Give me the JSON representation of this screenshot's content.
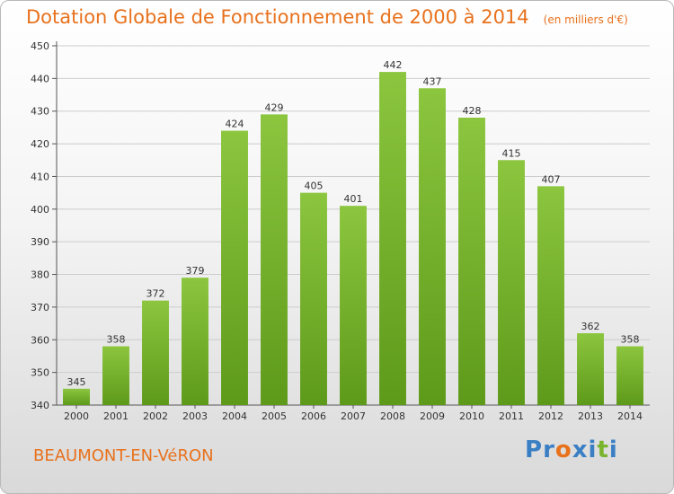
{
  "title": {
    "main": "Dotation Globale de Fonctionnement de 2000 à 2014",
    "unit": "(en milliers d'€)"
  },
  "commune": "BEAUMONT-EN-VéRON",
  "logo": {
    "text": "Proxiti",
    "letters": [
      "P",
      "r",
      "o",
      "x",
      "i",
      "t",
      "i"
    ],
    "colors": [
      "#3a7fc4",
      "#3a7fc4",
      "#e8711c",
      "#3a7fc4",
      "#3a7fc4",
      "#7ab32e",
      "#3a7fc4"
    ]
  },
  "colors": {
    "bar": "#8cc63f",
    "bar_dark": "#5e9a1a",
    "title": "#e8711c",
    "grid": "#cccccc"
  },
  "chart_data": {
    "type": "bar",
    "title": "Dotation Globale de Fonctionnement de 2000 à 2014",
    "subtitle": "(en milliers d'€)",
    "categories": [
      "2000",
      "2001",
      "2002",
      "2003",
      "2004",
      "2005",
      "2006",
      "2007",
      "2008",
      "2009",
      "2010",
      "2011",
      "2012",
      "2013",
      "2014"
    ],
    "values": [
      345,
      358,
      372,
      379,
      424,
      429,
      405,
      401,
      442,
      437,
      428,
      415,
      407,
      362,
      358
    ],
    "ylim": [
      340,
      450
    ],
    "yticks": [
      340,
      350,
      360,
      370,
      380,
      390,
      400,
      410,
      420,
      430,
      440,
      450
    ],
    "grid": true,
    "data_labels": true
  }
}
